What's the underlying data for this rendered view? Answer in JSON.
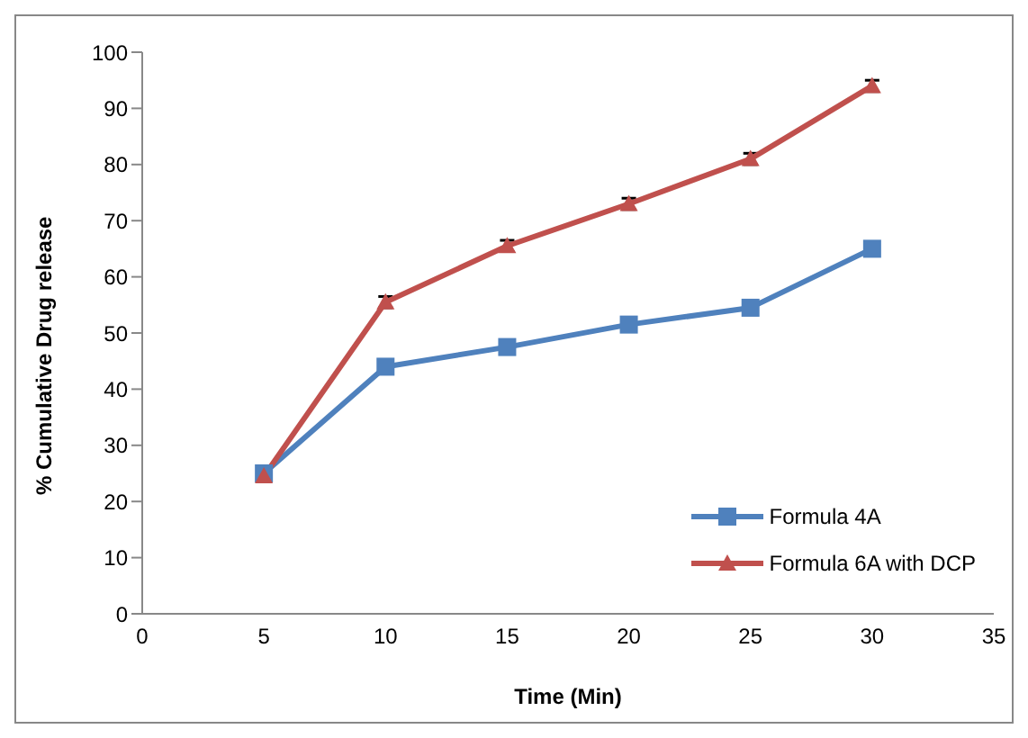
{
  "chart_data": {
    "type": "line",
    "xlabel": "Time (Min)",
    "ylabel": "% Cumulative Drug release",
    "x": [
      5,
      10,
      15,
      20,
      25,
      30
    ],
    "series": [
      {
        "name": "Formula 4A",
        "color": "#4f81bd",
        "marker": "square",
        "values": [
          25,
          44,
          47.5,
          51.5,
          54.5,
          65
        ]
      },
      {
        "name": "Formula 6A with DCP",
        "color": "#c0504d",
        "marker": "triangle",
        "values": [
          24.5,
          55.5,
          65.5,
          73,
          81,
          94
        ],
        "errors": [
          null,
          1,
          1,
          1,
          1,
          1
        ]
      }
    ],
    "xlim": [
      0,
      35
    ],
    "xticks": [
      0,
      5,
      10,
      15,
      20,
      25,
      30,
      35
    ],
    "ylim": [
      0,
      100
    ],
    "yticks": [
      0,
      10,
      20,
      30,
      40,
      50,
      60,
      70,
      80,
      90,
      100
    ],
    "grid": false,
    "legend": "bottom right"
  }
}
